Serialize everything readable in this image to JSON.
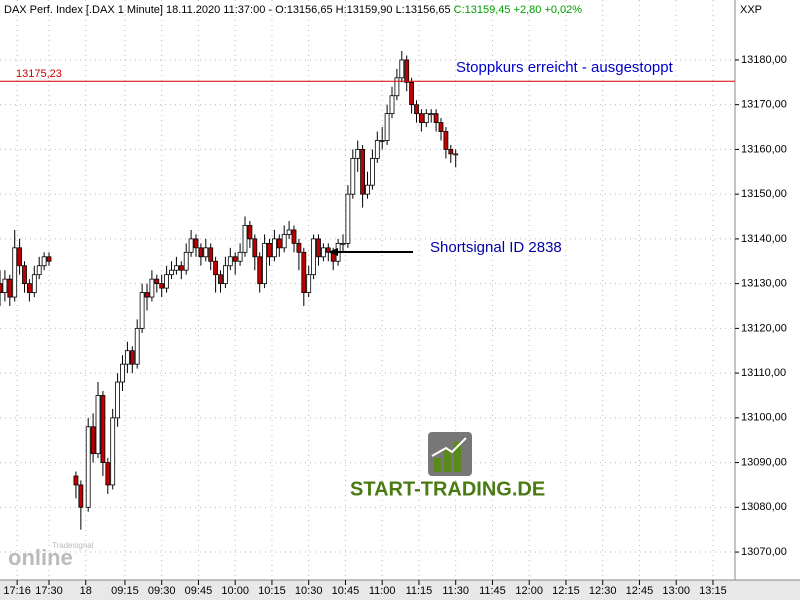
{
  "chart_data": {
    "type": "candlestick",
    "header": "DAX Perf. Index [.DAX  1 Minute] 18.11.2020 11:37:00 - O:13156,65 H:13159,90 L:13156,65",
    "header_change": "C:13159,45 +2,80 +0,02%",
    "corner_label": "XXP",
    "annotations": [
      "Stoppkurs erreicht - ausgestoppt",
      "Shortsignal ID 2838"
    ],
    "logo": "START-TRADING.DE",
    "watermark": [
      "online",
      "Tradesignal"
    ],
    "hline": {
      "value": 13175.23,
      "label": "13175,23",
      "color": "#d00000"
    },
    "up_color": "#ffffff",
    "down_color": "#c00000",
    "grid": true,
    "xlim": [
      0,
      300
    ],
    "ylim": [
      13064.2,
      13193.4
    ],
    "xticks": [
      {
        "value": 7,
        "label": "17:16"
      },
      {
        "value": 20,
        "label": "17:30"
      },
      {
        "value": 35,
        "label": "18"
      },
      {
        "value": 51,
        "label": "09:15"
      },
      {
        "value": 66,
        "label": "09:30"
      },
      {
        "value": 81,
        "label": "09:45"
      },
      {
        "value": 96,
        "label": "10:00"
      },
      {
        "value": 111,
        "label": "10:15"
      },
      {
        "value": 126,
        "label": "10:30"
      },
      {
        "value": 141,
        "label": "10:45"
      },
      {
        "value": 156,
        "label": "11:00"
      },
      {
        "value": 171,
        "label": "11:15"
      },
      {
        "value": 186,
        "label": "11:30"
      },
      {
        "value": 201,
        "label": "11:45"
      },
      {
        "value": 216,
        "label": "12:00"
      },
      {
        "value": 231,
        "label": "12:15"
      },
      {
        "value": 246,
        "label": "12:30"
      },
      {
        "value": 261,
        "label": "12:45"
      },
      {
        "value": 276,
        "label": "13:00"
      },
      {
        "value": 291,
        "label": "13:15"
      }
    ],
    "yticks": [
      {
        "value": 13070,
        "label": "13070,00"
      },
      {
        "value": 13080,
        "label": "13080,00"
      },
      {
        "value": 13090,
        "label": "13090,00"
      },
      {
        "value": 13100,
        "label": "13100,00"
      },
      {
        "value": 13110,
        "label": "13110,00"
      },
      {
        "value": 13120,
        "label": "13120,00"
      },
      {
        "value": 13130,
        "label": "13130,00"
      },
      {
        "value": 13140,
        "label": "13140,00"
      },
      {
        "value": 13150,
        "label": "13150,00"
      },
      {
        "value": 13160,
        "label": "13160,00"
      },
      {
        "value": 13170,
        "label": "13170,00"
      },
      {
        "value": 13180,
        "label": "13180,00"
      }
    ],
    "x": [
      0,
      2,
      4,
      6,
      8,
      10,
      12,
      14,
      16,
      18,
      20,
      31,
      33,
      36,
      38,
      40,
      42,
      44,
      46,
      48,
      50,
      52,
      54,
      56,
      58,
      60,
      62,
      64,
      66,
      68,
      70,
      72,
      74,
      76,
      78,
      80,
      82,
      84,
      86,
      88,
      90,
      92,
      94,
      96,
      98,
      100,
      102,
      104,
      106,
      108,
      110,
      112,
      114,
      116,
      118,
      120,
      122,
      124,
      126,
      128,
      130,
      132,
      134,
      136,
      138,
      140,
      142,
      144,
      146,
      148,
      150,
      152,
      154,
      156,
      158,
      160,
      162,
      164,
      166,
      168,
      170,
      172,
      174,
      176,
      178,
      180,
      182,
      184,
      186
    ],
    "open": [
      13130,
      13128,
      13131,
      13127,
      13138,
      13134,
      13130,
      13128,
      13132,
      13134,
      13136,
      13087,
      13085,
      13080,
      13098,
      13092,
      13105,
      13090,
      13085,
      13100,
      13108,
      13112,
      13115,
      13112,
      13120,
      13128,
      13127,
      13131,
      13130,
      13129,
      13132,
      13133,
      13134,
      13133,
      13137,
      13140,
      13138,
      13136,
      13138,
      13135,
      13132,
      13130,
      13134,
      13136,
      13135,
      13137,
      13143,
      13140,
      13136,
      13130,
      13139,
      13136,
      13140,
      13138,
      13141,
      13142,
      13139,
      13137,
      13128,
      13132,
      13140,
      13136,
      13138,
      13137,
      13135,
      13139,
      13139,
      13150,
      13158,
      13160,
      13150,
      13152,
      13158,
      13162,
      13162,
      13168,
      13172,
      13176,
      13180,
      13175,
      13170,
      13168,
      13166,
      13168,
      13168,
      13166,
      13164,
      13160,
      13159
    ],
    "high": [
      13133,
      13133,
      13132,
      13142,
      13140,
      13135,
      13131,
      13134,
      13136,
      13137,
      13137,
      13088,
      13086,
      13100,
      13101,
      13108,
      13106,
      13091,
      13102,
      13110,
      13114,
      13117,
      13116,
      13122,
      13130,
      13130,
      13133,
      13132,
      13132,
      13134,
      13135,
      13136,
      13135,
      13139,
      13142,
      13141,
      13139,
      13140,
      13139,
      13136,
      13133,
      13136,
      13138,
      13137,
      13139,
      13145,
      13144,
      13141,
      13137,
      13141,
      13140,
      13142,
      13141,
      13143,
      13144,
      13143,
      13140,
      13138,
      13134,
      13141,
      13141,
      13139,
      13139,
      13138,
      13140,
      13141,
      13152,
      13160,
      13162,
      13161,
      13155,
      13160,
      13164,
      13165,
      13170,
      13174,
      13178,
      13182,
      13181,
      13176,
      13171,
      13169,
      13169,
      13169,
      13169,
      13167,
      13165,
      13161,
      13160
    ],
    "low": [
      13125,
      13126,
      13125,
      13126,
      13132,
      13128,
      13126,
      13127,
      13131,
      13133,
      13134,
      13082,
      13075,
      13079,
      13090,
      13091,
      13087,
      13083,
      13084,
      13098,
      13106,
      13110,
      13110,
      13111,
      13119,
      13124,
      13126,
      13128,
      13127,
      13128,
      13131,
      13132,
      13131,
      13132,
      13136,
      13136,
      13134,
      13135,
      13133,
      13128,
      13128,
      13129,
      13133,
      13132,
      13134,
      13136,
      13138,
      13133,
      13128,
      13129,
      13134,
      13135,
      13136,
      13137,
      13140,
      13137,
      13133,
      13125,
      13127,
      13131,
      13134,
      13135,
      13135,
      13133,
      13134,
      13137,
      13138,
      13149,
      13155,
      13147,
      13149,
      13151,
      13157,
      13160,
      13161,
      13167,
      13171,
      13175,
      13173,
      13168,
      13166,
      13164,
      13165,
      13166,
      13164,
      13162,
      13158,
      13157,
      13156
    ],
    "close": [
      13128,
      13131,
      13127,
      13138,
      13134,
      13130,
      13128,
      13132,
      13134,
      13136,
      13135,
      13085,
      13080,
      13098,
      13092,
      13105,
      13090,
      13085,
      13100,
      13108,
      13112,
      13115,
      13112,
      13120,
      13128,
      13127,
      13131,
      13130,
      13129,
      13132,
      13133,
      13134,
      13133,
      13137,
      13140,
      13138,
      13136,
      13138,
      13135,
      13132,
      13130,
      13134,
      13136,
      13135,
      13137,
      13143,
      13140,
      13136,
      13130,
      13139,
      13136,
      13140,
      13138,
      13141,
      13142,
      13139,
      13137,
      13128,
      13132,
      13140,
      13136,
      13138,
      13137,
      13135,
      13139,
      13139,
      13150,
      13158,
      13160,
      13150,
      13152,
      13158,
      13162,
      13162,
      13168,
      13172,
      13176,
      13180,
      13175,
      13170,
      13168,
      13166,
      13168,
      13168,
      13166,
      13164,
      13160,
      13159,
      13159
    ]
  }
}
